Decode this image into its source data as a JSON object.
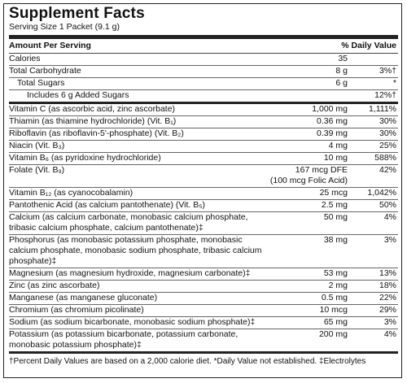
{
  "title": "Supplement Facts",
  "serving_size": "Serving Size 1 Packet (9.1 g)",
  "header": {
    "amount": "Amount Per Serving",
    "dv": "% Daily Value"
  },
  "rows": [
    {
      "name": "Calories",
      "amount": "35",
      "dv": ""
    },
    {
      "name": "Total Carbohydrate",
      "amount": "8 g",
      "dv": "3%†"
    },
    {
      "name": "Total Sugars",
      "amount": "6 g",
      "dv": "*"
    },
    {
      "name": "Includes 6 g Added Sugars",
      "amount": "",
      "dv": "12%†"
    },
    {
      "name": "Vitamin C (as ascorbic acid, zinc ascorbate)",
      "amount": "1,000 mg",
      "dv": "1,111%"
    },
    {
      "name": "Thiamin (as thiamine hydrochloride) (Vit. B₁)",
      "amount": "0.36 mg",
      "dv": "30%"
    },
    {
      "name": "Riboflavin (as riboflavin-5'-phosphate) (Vit. B₂)",
      "amount": "0.39 mg",
      "dv": "30%"
    },
    {
      "name": "Niacin (Vit. B₃)",
      "amount": "4 mg",
      "dv": "25%"
    },
    {
      "name": "Vitamin B₆ (as pyridoxine hydrochloride)",
      "amount": "10 mg",
      "dv": "588%"
    },
    {
      "name": "Folate (Vit. B₉)",
      "amount": "167 mcg DFE\n(100 mcg Folic Acid)",
      "dv": "42%"
    },
    {
      "name": "Vitamin B₁₂ (as cyanocobalamin)",
      "amount": "25 mcg",
      "dv": "1,042%"
    },
    {
      "name": "Pantothenic Acid (as calcium pantothenate) (Vit. B₅)",
      "amount": "2.5 mg",
      "dv": "50%"
    },
    {
      "name": "Calcium (as calcium carbonate, monobasic calcium phosphate, tribasic calcium phosphate, calcium pantothenate)‡",
      "amount": "50 mg",
      "dv": "4%"
    },
    {
      "name": "Phosphorus (as monobasic potassium phosphate, monobasic calcium phosphate, monobasic sodium phosphate, tribasic calcium phosphate)‡",
      "amount": "38 mg",
      "dv": "3%"
    },
    {
      "name": "Magnesium (as magnesium hydroxide, magnesium carbonate)‡",
      "amount": "53 mg",
      "dv": "13%"
    },
    {
      "name": "Zinc (as zinc ascorbate)",
      "amount": "2 mg",
      "dv": "18%"
    },
    {
      "name": "Manganese (as manganese gluconate)",
      "amount": "0.5 mg",
      "dv": "22%"
    },
    {
      "name": "Chromium (as chromium picolinate)",
      "amount": "10 mcg",
      "dv": "29%"
    },
    {
      "name": "Sodium (as sodium bicarbonate, monobasic sodium phosphate)‡",
      "amount": "65 mg",
      "dv": "3%"
    },
    {
      "name": "Potassium (as potassium bicarbonate, potassium carbonate, monobasic potassium phosphate)‡",
      "amount": "200 mg",
      "dv": "4%"
    }
  ],
  "footer": "†Percent Daily Values are based on a 2,000 calorie diet.  *Daily Value not established.  ‡Electrolytes"
}
